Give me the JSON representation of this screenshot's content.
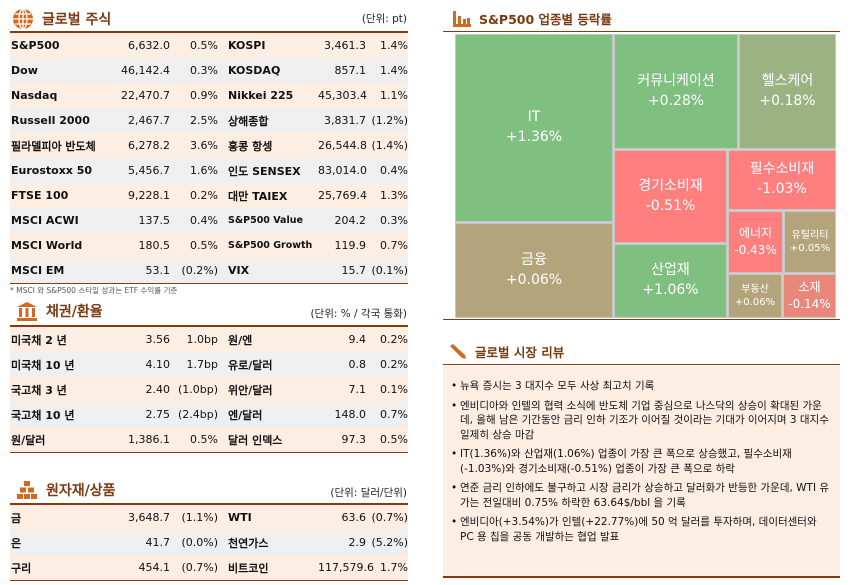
{
  "stocks": {
    "title": "글로벌 주식",
    "unit": "(단위: pt)",
    "footnote": "* MSCI 와 S&P500 스타일 성과는 ETF 수익률 기준",
    "rows": [
      [
        "S&P500",
        "6,632.0",
        "0.5%",
        "KOSPI",
        "3,461.3",
        "1.4%"
      ],
      [
        "Dow",
        "46,142.4",
        "0.3%",
        "KOSDAQ",
        "857.1",
        "1.4%"
      ],
      [
        "Nasdaq",
        "22,470.7",
        "0.9%",
        "Nikkei 225",
        "45,303.4",
        "1.1%"
      ],
      [
        "Russell 2000",
        "2,467.7",
        "2.5%",
        "상해종합",
        "3,831.7",
        "(1.2%)"
      ],
      [
        "필라델피아 반도체",
        "6,278.2",
        "3.6%",
        "홍콩 항셍",
        "26,544.8",
        "(1.4%)"
      ],
      [
        "Eurostoxx 50",
        "5,456.7",
        "1.6%",
        "인도 SENSEX",
        "83,014.0",
        "0.4%"
      ],
      [
        "FTSE 100",
        "9,228.1",
        "0.2%",
        "대만 TAIEX",
        "25,769.4",
        "1.3%"
      ],
      [
        "MSCI ACWI",
        "137.5",
        "0.4%",
        "S&P500 Value",
        "204.2",
        "0.3%"
      ],
      [
        "MSCI World",
        "180.5",
        "0.5%",
        "S&P500 Growth",
        "119.9",
        "0.7%"
      ],
      [
        "MSCI EM",
        "53.1",
        "(0.2%)",
        "VIX",
        "15.7",
        "(0.1%)"
      ]
    ]
  },
  "bonds": {
    "title": "채권/환율",
    "unit": "(단위: % / 각국 통화)",
    "rows": [
      [
        "미국채 2 년",
        "3.56",
        "1.0bp",
        "원/엔",
        "9.4",
        "0.2%"
      ],
      [
        "미국채 10 년",
        "4.10",
        "1.7bp",
        "유로/달러",
        "0.8",
        "0.2%"
      ],
      [
        "국고채 3 년",
        "2.40",
        "(1.0bp)",
        "위안/달러",
        "7.1",
        "0.1%"
      ],
      [
        "국고채 10 년",
        "2.75",
        "(2.4bp)",
        "엔/달러",
        "148.0",
        "0.7%"
      ],
      [
        "원/달러",
        "1,386.1",
        "0.5%",
        "달러 인덱스",
        "97.3",
        "0.5%"
      ]
    ]
  },
  "commodities": {
    "title": "원자재/상품",
    "unit": "(단위: 달러/단위)",
    "rows": [
      [
        "금",
        "3,648.7",
        "(1.1%)",
        "WTI",
        "63.6",
        "(0.7%)"
      ],
      [
        "은",
        "41.7",
        "(0.0%)",
        "천연가스",
        "2.9",
        "(5.2%)"
      ],
      [
        "구리",
        "454.1",
        "(0.7%)",
        "비트코인",
        "117,579.6",
        "1.7%"
      ]
    ]
  },
  "sectors": {
    "title": "S&P500 업종별 등락률",
    "items": [
      {
        "name": "IT",
        "change": "+1.36%"
      },
      {
        "name": "금융",
        "change": "+0.06%"
      },
      {
        "name": "커뮤니케이션",
        "change": "+0.28%"
      },
      {
        "name": "헬스케어",
        "change": "+0.18%"
      },
      {
        "name": "경기소비재",
        "change": "-0.51%"
      },
      {
        "name": "필수소비재",
        "change": "-1.03%"
      },
      {
        "name": "산업재",
        "change": "+1.06%"
      },
      {
        "name": "에너지",
        "change": "-0.43%"
      },
      {
        "name": "유틸리티",
        "change": "+0.05%"
      },
      {
        "name": "부동산",
        "change": "+0.06%"
      },
      {
        "name": "소재",
        "change": "-0.14%"
      }
    ],
    "colors": {
      "strong_up": "#7fbf7f",
      "up": "#9bb383",
      "flat": "#b3a47c",
      "down": "#ff7f7f",
      "slight_down": "#e9877b"
    }
  },
  "review": {
    "title": "글로벌 시장 리뷰",
    "items": [
      "뉴욕 증시는 3 대지수 모두 사상 최고치 기록",
      "엔비디아와 인텔의 협력 소식에 반도체 기업 중심으로 나스닥의 상승이 확대된 가운데, 올해 남은 기간동안 금리 인하 기조가 이어질 것이라는 기대가 이어지며 3 대지수 일제히 상승 마감",
      "IT(1.36%)와 산업재(1.06%) 업종이 가장 큰 폭으로 상승했고, 필수소비재(-1.03%)와 경기소비재(-0.51%) 업종이 가장 큰 폭으로 하락",
      "연준 금리 인하에도 불구하고 시장 금리가 상승하고 달러화가 반등한 가운데, WTI 유가는 전일대비 0.75% 하락한 63.64$/bbl 을 기록",
      "엔비디아(+3.54%)가 인텔(+22.77%)에 50 억 달러를 투자하며, 데이터센터와 PC 용 칩을 공동 개발하는 협업 발표"
    ]
  },
  "accent": "#8b3a0f"
}
